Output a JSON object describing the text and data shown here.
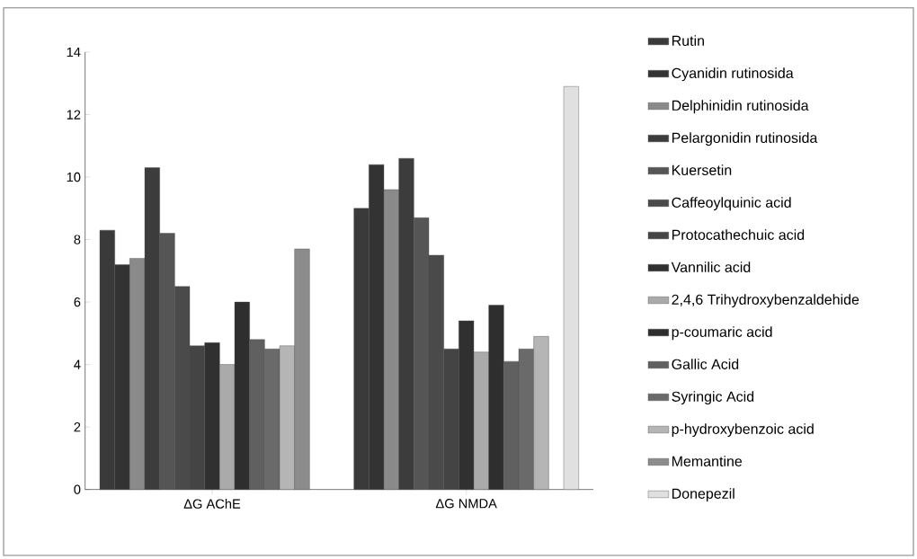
{
  "chart_data": {
    "type": "bar",
    "categories": [
      "ΔG AChE",
      "ΔG NMDA"
    ],
    "series": [
      {
        "name": "Rutin",
        "color": "#3a3a3a",
        "values": [
          8.3,
          9.0
        ]
      },
      {
        "name": "Cyanidin rutinosida",
        "color": "#333333",
        "values": [
          7.2,
          10.4
        ]
      },
      {
        "name": "Delphinidin rutinosida",
        "color": "#8a8a8a",
        "values": [
          7.4,
          9.6
        ]
      },
      {
        "name": "Pelargonidin rutinosida",
        "color": "#3c3c3c",
        "values": [
          10.3,
          10.6
        ]
      },
      {
        "name": "Kuersetin",
        "color": "#555555",
        "values": [
          8.2,
          8.7
        ]
      },
      {
        "name": "Caffeoylquinic acid",
        "color": "#4a4a4a",
        "values": [
          6.5,
          7.5
        ]
      },
      {
        "name": "Protocathechuic acid",
        "color": "#444444",
        "values": [
          4.6,
          4.5
        ]
      },
      {
        "name": "Vannilic acid",
        "color": "#303030",
        "values": [
          4.7,
          5.4
        ]
      },
      {
        "name": "2,4,6 Trihydroxybenzaldehide",
        "color": "#aaaaaa",
        "values": [
          4.0,
          4.4
        ]
      },
      {
        "name": "p-coumaric acid",
        "color": "#2e2e2e",
        "values": [
          6.0,
          5.9
        ]
      },
      {
        "name": "Gallic Acid",
        "color": "#606060",
        "values": [
          4.8,
          4.1
        ]
      },
      {
        "name": "Syringic Acid",
        "color": "#6a6a6a",
        "values": [
          4.5,
          4.5
        ]
      },
      {
        "name": "p-hydroxybenzoic acid",
        "color": "#b5b5b5",
        "values": [
          4.6,
          4.9
        ]
      },
      {
        "name": "Memantine",
        "color": "#8c8c8c",
        "values": [
          7.7,
          null
        ]
      },
      {
        "name": "Donepezil",
        "color": "#e0e0e0",
        "values": [
          null,
          12.9
        ]
      }
    ],
    "ylim": [
      0,
      14
    ],
    "yticks": [
      0,
      2,
      4,
      6,
      8,
      10,
      12,
      14
    ],
    "grid": false,
    "legend": "right"
  }
}
